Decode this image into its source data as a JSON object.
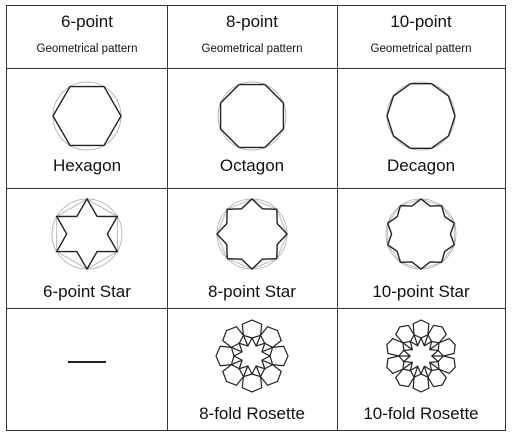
{
  "columns": [
    {
      "title": "6-point",
      "subtitle": "Geometrical pattern"
    },
    {
      "title": "8-point",
      "subtitle": "Geometrical pattern"
    },
    {
      "title": "10-point",
      "subtitle": "Geometrical pattern"
    }
  ],
  "rows": [
    {
      "name": "polygons",
      "cells": [
        {
          "label": "Hexagon",
          "n": 6
        },
        {
          "label": "Octagon",
          "n": 8
        },
        {
          "label": "Decagon",
          "n": 10
        }
      ]
    },
    {
      "name": "stars",
      "cells": [
        {
          "label": "6-point Star",
          "n": 6
        },
        {
          "label": "8-point Star",
          "n": 8
        },
        {
          "label": "10-point Star",
          "n": 10
        }
      ]
    },
    {
      "name": "rosettes",
      "cells": [
        {
          "label": "",
          "placeholder": "dash"
        },
        {
          "label": "8-fold Rosette",
          "n": 8
        },
        {
          "label": "10-fold Rosette",
          "n": 10
        }
      ]
    }
  ],
  "colors": {
    "line": "#222222",
    "guide": "#aaaaaa",
    "background": "#ffffff"
  }
}
